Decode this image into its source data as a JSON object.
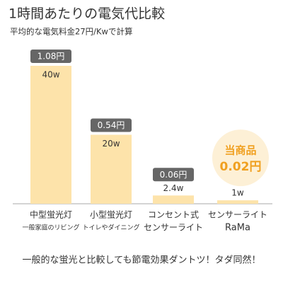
{
  "chart_data": {
    "type": "bar",
    "title": "1時間あたりの電気代比較",
    "subtitle": "平均的な電気料金27円/Kwで計算",
    "categories": [
      "中型蛍光灯",
      "小型蛍光灯",
      "コンセント式",
      "センサーライト"
    ],
    "category_sublabels": [
      "一般家庭のリビング",
      "トイレやダイニング",
      "センサーライト",
      "RaMa"
    ],
    "values": [
      40,
      20,
      2.4,
      1
    ],
    "value_labels": [
      "40w",
      "20w",
      "2.4w",
      "1w"
    ],
    "costs": [
      1.08,
      0.54,
      0.06,
      0.02
    ],
    "cost_labels": [
      "1.08円",
      "0.54円",
      "0.06円",
      "0.02円"
    ],
    "highlight_index": 3,
    "highlight_label": "当商品",
    "color": "#fde3aa",
    "highlight_color": "#f0a020",
    "ylim": [
      0,
      40
    ],
    "footer": "一般的な蛍光と比較しても節電効果ダントツ！タダ同然！"
  }
}
